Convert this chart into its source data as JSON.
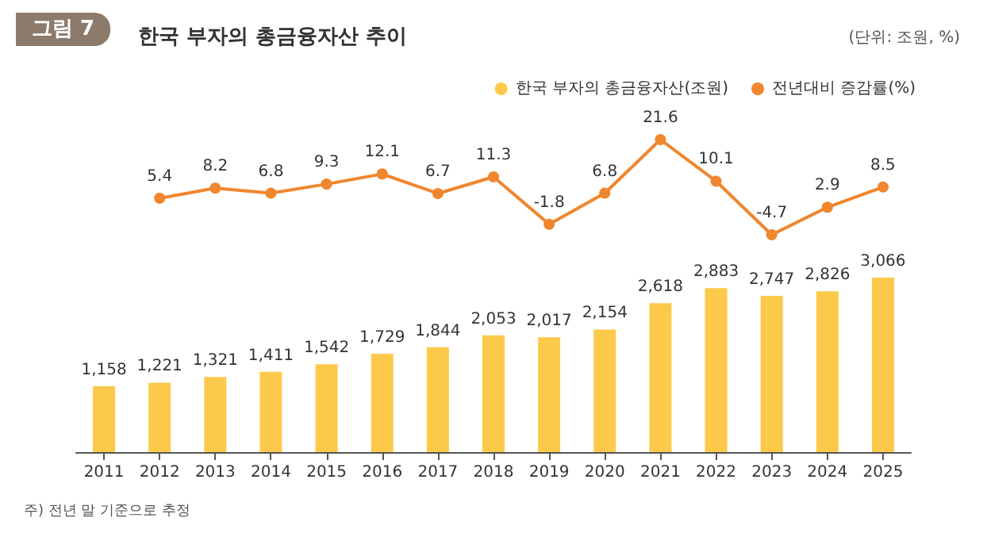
{
  "chart_data": [
    {
      "type": "line",
      "title": "그림 7",
      "subtitle": "한국 부자의 총금융자산 추이",
      "annotations": [
        "(단위: 조원, %)",
        "주) 전년 말 기준으로 추정"
      ],
      "categories": [
        "2011",
        "2012",
        "2013",
        "2014",
        "2015",
        "2016",
        "2017",
        "2018",
        "2019",
        "2020",
        "2021",
        "2022",
        "2023",
        "2024",
        "2025"
      ],
      "series": [
        {
          "name": "전년대비 증감률(%)",
          "color": "#f0862e",
          "values": [
            null,
            5.4,
            8.2,
            6.8,
            9.3,
            12.1,
            6.7,
            11.3,
            -1.8,
            6.8,
            21.6,
            10.1,
            -4.7,
            2.9,
            8.5
          ]
        }
      ],
      "data_labels": true,
      "legend": "top right",
      "grid": false,
      "marker": "circle",
      "line_style": "solid",
      "tick_labels": false
    },
    {
      "type": "bar",
      "categories": [
        "2011",
        "2012",
        "2013",
        "2014",
        "2015",
        "2016",
        "2017",
        "2018",
        "2019",
        "2020",
        "2021",
        "2022",
        "2023",
        "2024",
        "2025"
      ],
      "series": [
        {
          "name": "한국 부자의 총금융자산(조원)",
          "color": "#fcc94a",
          "values": [
            1158,
            1221,
            1321,
            1411,
            1542,
            1729,
            1844,
            2053,
            2017,
            2154,
            2618,
            2883,
            2747,
            2826,
            3066
          ],
          "value_labels": [
            "1,158",
            "1,221",
            "1,321",
            "1,411",
            "1,542",
            "1,729",
            "1,844",
            "2,053",
            "2,017",
            "2,154",
            "2,618",
            "2,883",
            "2,747",
            "2,826",
            "3,066"
          ]
        }
      ],
      "data_labels": true,
      "legend": "top right",
      "grid": false,
      "tick_labels": "x"
    }
  ]
}
